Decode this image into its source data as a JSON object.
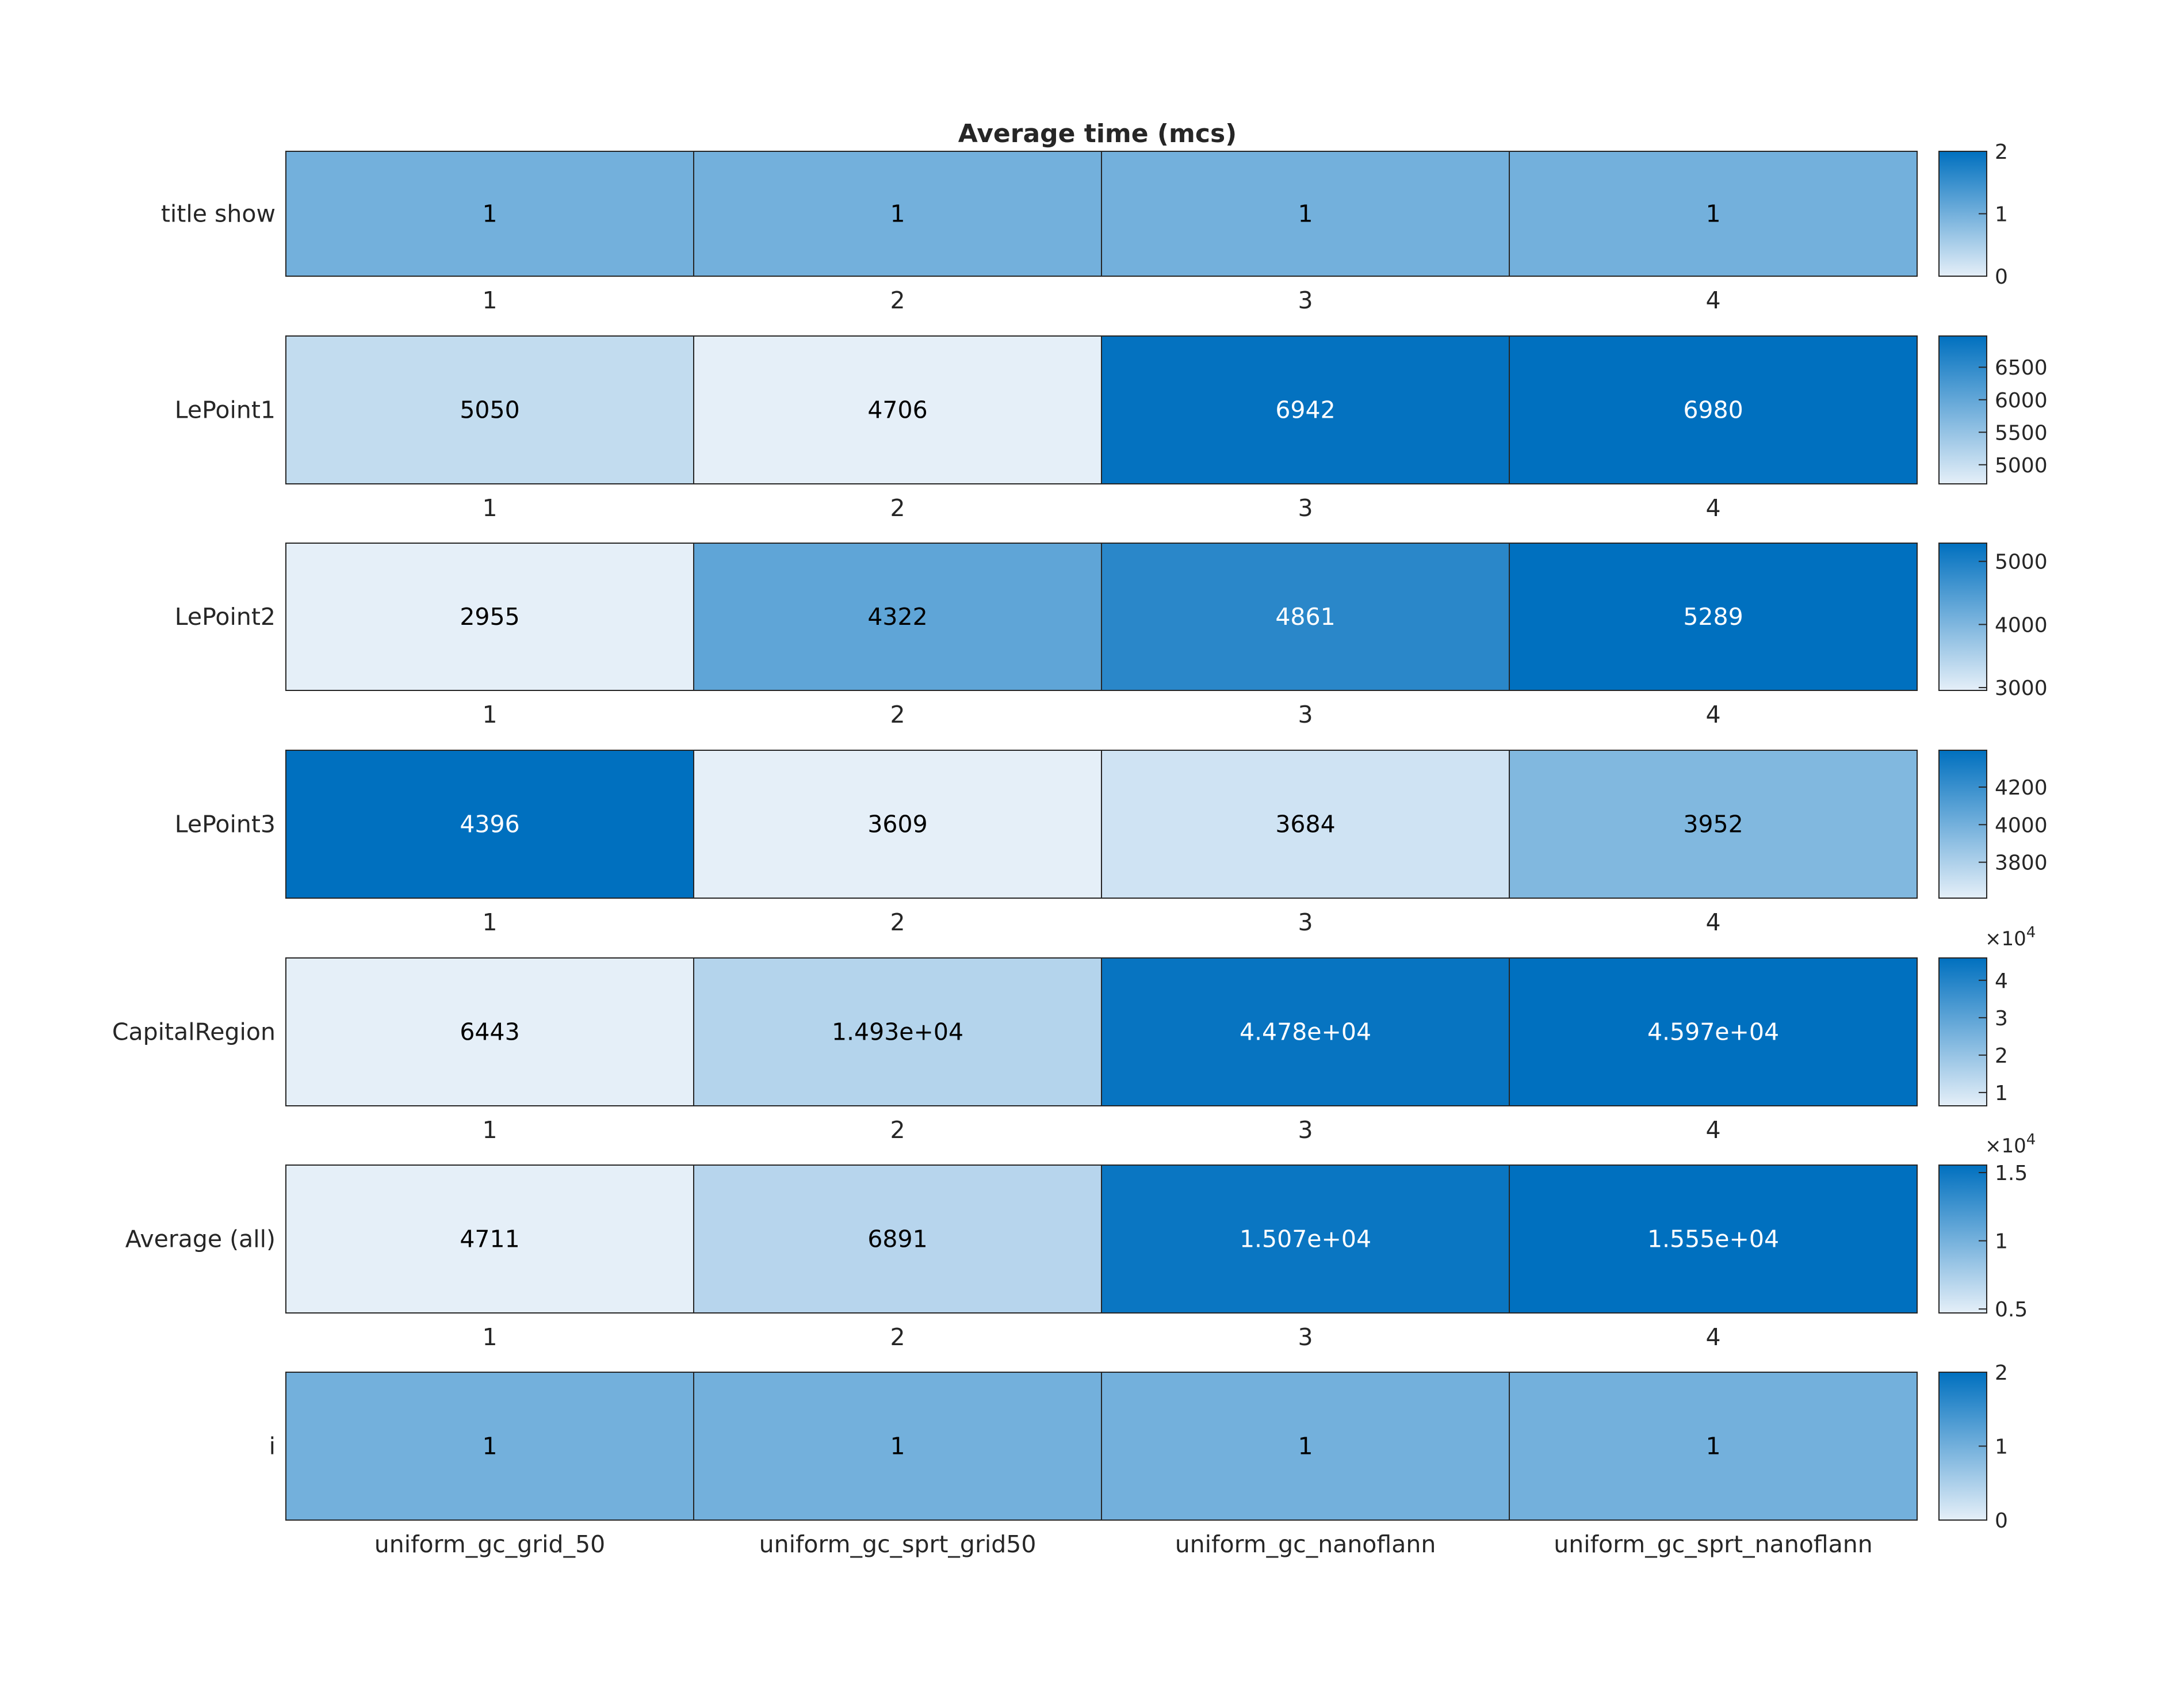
{
  "chart_data": {
    "type": "heatmap",
    "title": "Average time (mcs)",
    "columns": [
      "1",
      "2",
      "3",
      "4"
    ],
    "xticklabels_bottom": [
      "uniform_gc_grid_50",
      "uniform_gc_sprt_grid50",
      "uniform_gc_nanoflann",
      "uniform_gc_sprt_nanoflann"
    ],
    "colormap": {
      "low": "#e5eff8",
      "high": "#0070bf"
    },
    "rows": [
      {
        "label": "title show",
        "values": [
          1,
          1,
          1,
          1
        ],
        "display": [
          "1",
          "1",
          "1",
          "1"
        ],
        "clim": [
          0,
          2
        ],
        "colorbar_ticks": [
          0,
          1,
          2
        ],
        "colorbar_ticklabels": [
          "0",
          "1",
          "2"
        ],
        "colorbar_exponent": null
      },
      {
        "label": "LePoint1",
        "values": [
          5050,
          4706,
          6942,
          6980
        ],
        "display": [
          "5050",
          "4706",
          "6942",
          "6980"
        ],
        "clim": [
          4706,
          6980
        ],
        "colorbar_ticks": [
          5000,
          5500,
          6000,
          6500
        ],
        "colorbar_ticklabels": [
          "5000",
          "5500",
          "6000",
          "6500"
        ],
        "colorbar_exponent": null
      },
      {
        "label": "LePoint2",
        "values": [
          2955,
          4322,
          4861,
          5289
        ],
        "display": [
          "2955",
          "4322",
          "4861",
          "5289"
        ],
        "clim": [
          2955,
          5289
        ],
        "colorbar_ticks": [
          3000,
          4000,
          5000
        ],
        "colorbar_ticklabels": [
          "3000",
          "4000",
          "5000"
        ],
        "colorbar_exponent": null
      },
      {
        "label": "LePoint3",
        "values": [
          4396,
          3609,
          3684,
          3952
        ],
        "display": [
          "4396",
          "3609",
          "3684",
          "3952"
        ],
        "clim": [
          3609,
          4396
        ],
        "colorbar_ticks": [
          3800,
          4000,
          4200
        ],
        "colorbar_ticklabels": [
          "3800",
          "4000",
          "4200"
        ],
        "colorbar_exponent": null
      },
      {
        "label": "CapitalRegion",
        "values": [
          6443,
          14930,
          44780,
          45970
        ],
        "display": [
          "6443",
          "1.493e+04",
          "4.478e+04",
          "4.597e+04"
        ],
        "clim": [
          6443,
          45970
        ],
        "colorbar_ticks": [
          10000,
          20000,
          30000,
          40000
        ],
        "colorbar_ticklabels": [
          "1",
          "2",
          "3",
          "4"
        ],
        "colorbar_exponent": "×10",
        "colorbar_exponent_power": "4"
      },
      {
        "label": "Average (all)",
        "values": [
          4711,
          6891,
          15070,
          15550
        ],
        "display": [
          "4711",
          "6891",
          "1.507e+04",
          "1.555e+04"
        ],
        "clim": [
          4711,
          15550
        ],
        "colorbar_ticks": [
          5000,
          10000,
          15000
        ],
        "colorbar_ticklabels": [
          "0.5",
          "1",
          "1.5"
        ],
        "colorbar_exponent": "×10",
        "colorbar_exponent_power": "4"
      },
      {
        "label": "i",
        "values": [
          1,
          1,
          1,
          1
        ],
        "display": [
          "1",
          "1",
          "1",
          "1"
        ],
        "clim": [
          0,
          2
        ],
        "colorbar_ticks": [
          0,
          1,
          2
        ],
        "colorbar_ticklabels": [
          "0",
          "1",
          "2"
        ],
        "colorbar_exponent": null
      }
    ]
  }
}
